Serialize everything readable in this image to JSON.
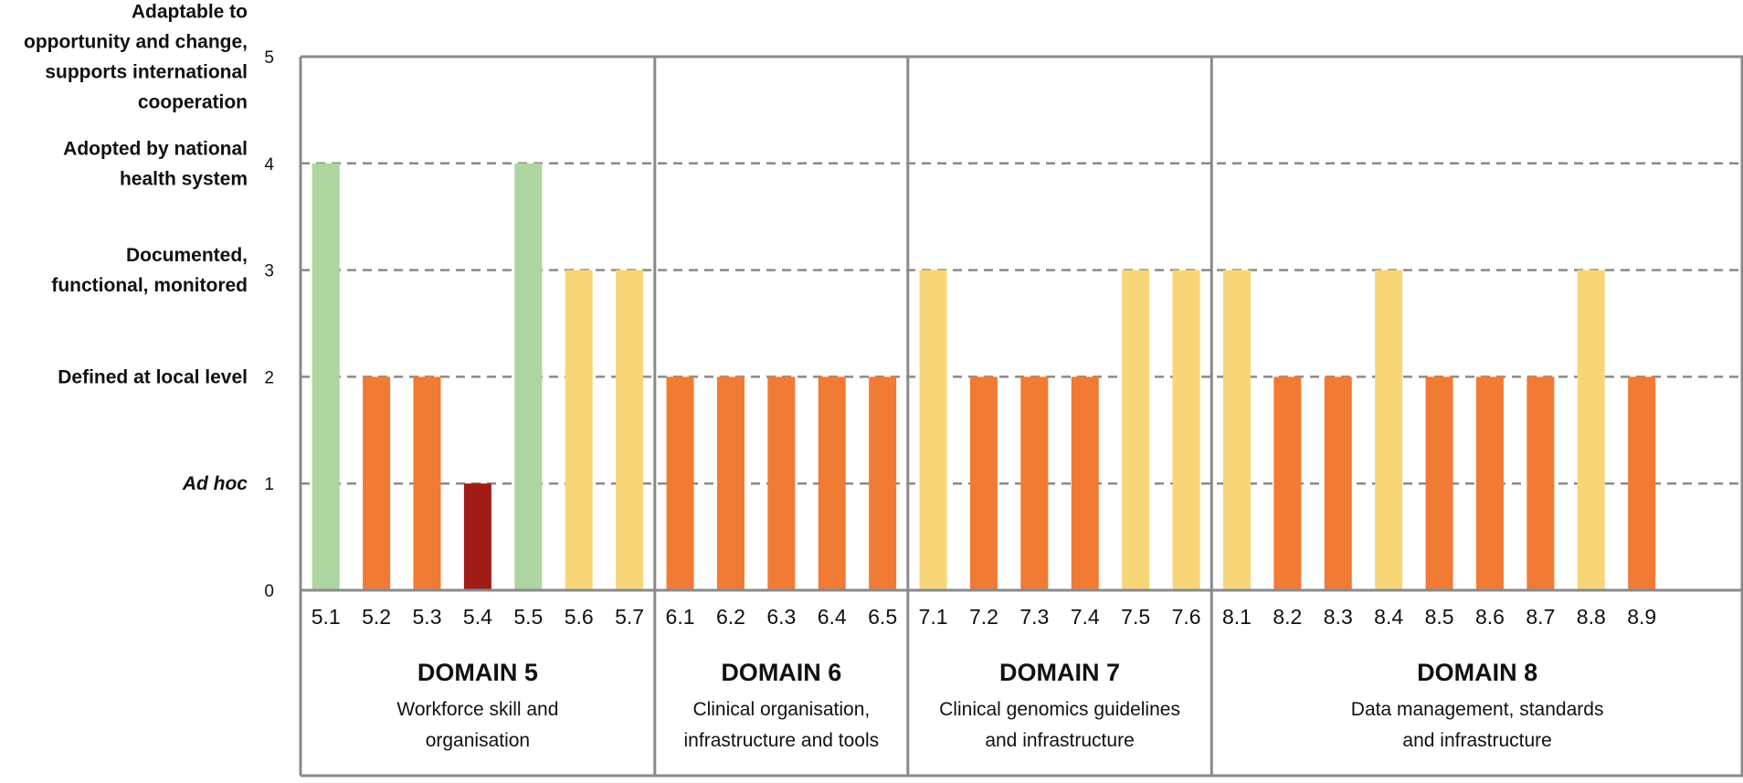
{
  "chart_data": {
    "type": "bar",
    "ylim": [
      0,
      5
    ],
    "yticks": [
      "0",
      "1",
      "2",
      "3",
      "4",
      "5"
    ],
    "level_labels": [
      {
        "level": 1,
        "lines": [
          "Ad hoc"
        ],
        "italic": true
      },
      {
        "level": 2,
        "lines": [
          "Defined at local level"
        ],
        "italic": false
      },
      {
        "level": 3,
        "lines": [
          "Documented,",
          "functional, monitored"
        ],
        "italic": false
      },
      {
        "level": 4,
        "lines": [
          "Adopted by national",
          "health system"
        ],
        "italic": false
      },
      {
        "level": 5,
        "lines": [
          "Adaptable to",
          "opportunity and change,",
          "supports international",
          "cooperation"
        ],
        "italic": false
      }
    ],
    "level_colors": {
      "1": "#a11c17",
      "2": "#f17a34",
      "3": "#f8d677",
      "4": "#acd5a0"
    },
    "gridlines_dashed": [
      1,
      2,
      3,
      4
    ],
    "domains": [
      {
        "title": "DOMAIN 5",
        "subtitle": [
          "Workforce skill and",
          "organisation"
        ],
        "categories": [
          "5.1",
          "5.2",
          "5.3",
          "5.4",
          "5.5",
          "5.6",
          "5.7"
        ],
        "values": [
          4,
          2,
          2,
          1,
          4,
          3,
          3
        ]
      },
      {
        "title": "DOMAIN 6",
        "subtitle": [
          "Clinical organisation,",
          "infrastructure and tools"
        ],
        "categories": [
          "6.1",
          "6.2",
          "6.3",
          "6.4",
          "6.5"
        ],
        "values": [
          2,
          2,
          2,
          2,
          2
        ]
      },
      {
        "title": "DOMAIN 7",
        "subtitle": [
          "Clinical genomics guidelines",
          "and infrastructure"
        ],
        "categories": [
          "7.1",
          "7.2",
          "7.3",
          "7.4",
          "7.5",
          "7.6"
        ],
        "values": [
          3,
          2,
          2,
          2,
          3,
          3
        ]
      },
      {
        "title": "DOMAIN 8",
        "subtitle": [
          "Data management, standards",
          "and infrastructure"
        ],
        "categories": [
          "8.1",
          "8.2",
          "8.3",
          "8.4",
          "8.5",
          "8.6",
          "8.7",
          "8.8",
          "8.9"
        ],
        "values": [
          3,
          2,
          2,
          3,
          2,
          2,
          2,
          3,
          2
        ]
      }
    ]
  }
}
